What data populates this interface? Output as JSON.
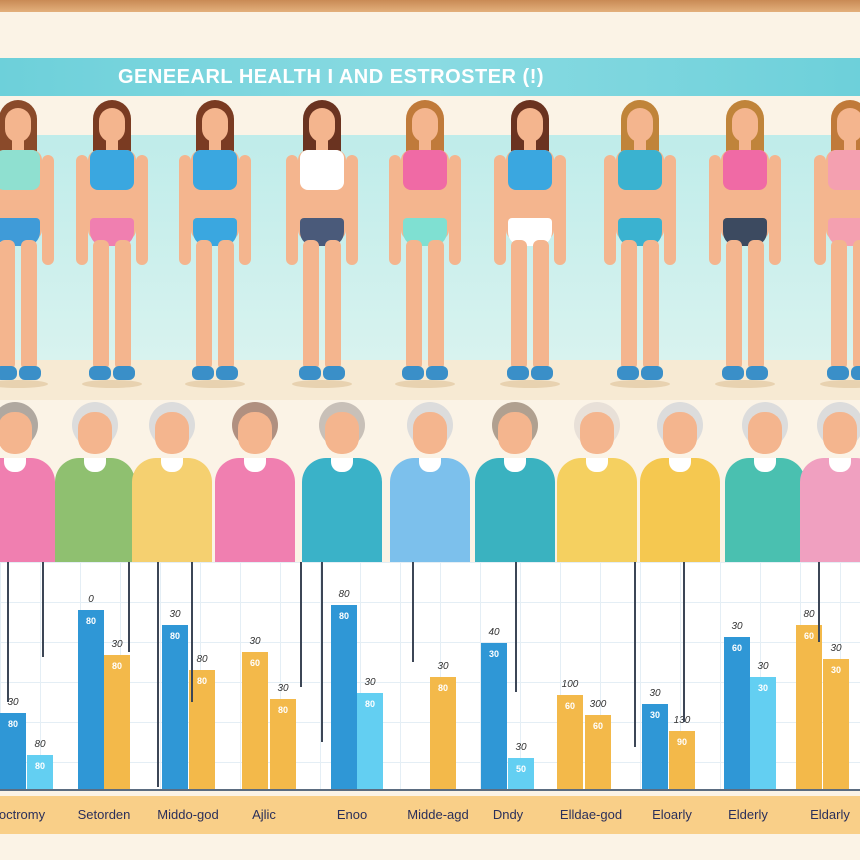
{
  "title": "GENEEARL HEALTH I AND ESTROSTER (!)",
  "colors": {
    "blue": "#2f97d6",
    "light_blue": "#63cff2",
    "orange": "#f3b94a",
    "title_band": "#6dd0da",
    "category_band": "#f9cf88"
  },
  "young_women": [
    {
      "top": "#8fe0d0",
      "bottom": "#3f9bd8",
      "hair": "#8a4a2a"
    },
    {
      "top": "#3aa7e0",
      "bottom": "#f07fb0",
      "hair": "#7a3b22"
    },
    {
      "top": "#3aa7e0",
      "bottom": "#3aa7e0",
      "hair": "#7a3b22"
    },
    {
      "top": "#ffffff",
      "bottom": "#4a5a7a",
      "hair": "#6a3320"
    },
    {
      "top": "#f06aa5",
      "bottom": "#7fe0d2",
      "hair": "#c07a3a"
    },
    {
      "top": "#3aa7e0",
      "bottom": "#ffffff",
      "hair": "#6a3320"
    },
    {
      "top": "#3ab2d0",
      "bottom": "#3ab2d0",
      "hair": "#c0843a"
    },
    {
      "top": "#f06aa5",
      "bottom": "#3c4a60",
      "hair": "#c0843a"
    },
    {
      "top": "#f4a0b0",
      "bottom": "#f4a0b0",
      "hair": "#c07a3a"
    }
  ],
  "elderly_women": [
    {
      "top": "#f07fb0",
      "hair": "#b0a8a0"
    },
    {
      "top": "#8fc070",
      "hair": "#dcdcdc"
    },
    {
      "top": "#f5d070",
      "hair": "#dcdcdc"
    },
    {
      "top": "#f07fb0",
      "hair": "#b09080"
    },
    {
      "top": "#3ab2c8",
      "hair": "#c8c0b8"
    },
    {
      "top": "#7cc0ec",
      "hair": "#dcdcdc"
    },
    {
      "top": "#3ab2c0",
      "hair": "#b0a090"
    },
    {
      "top": "#f5d060",
      "hair": "#e8e0d8"
    },
    {
      "top": "#f5c850",
      "hair": "#dcdcdc"
    },
    {
      "top": "#4ac0b0",
      "hair": "#dcdcdc"
    },
    {
      "top": "#f0a0c0",
      "hair": "#dcdcdc"
    }
  ],
  "bars": [
    {
      "color": "blue",
      "level": 0.34,
      "label": "30",
      "inner": "80"
    },
    {
      "color": "light_blue",
      "level": 0.15,
      "label": "80",
      "inner": "80"
    },
    {
      "color": "blue",
      "level": 0.8,
      "label": "0",
      "inner": "80"
    },
    {
      "color": "orange",
      "level": 0.6,
      "label": "30",
      "inner": "80"
    },
    {
      "color": "blue",
      "level": 0.73,
      "label": "30",
      "inner": "80"
    },
    {
      "color": "orange",
      "level": 0.53,
      "label": "80",
      "inner": "80"
    },
    {
      "color": "orange",
      "level": 0.61,
      "label": "30",
      "inner": "60"
    },
    {
      "color": "orange",
      "level": 0.4,
      "label": "30",
      "inner": "80"
    },
    {
      "color": "blue",
      "level": 0.82,
      "label": "80",
      "inner": "80"
    },
    {
      "color": "light_blue",
      "level": 0.43,
      "label": "30",
      "inner": "80"
    },
    {
      "color": "orange",
      "level": 0.5,
      "label": "30",
      "inner": "80"
    },
    {
      "color": "blue",
      "level": 0.65,
      "label": "40",
      "inner": "30"
    },
    {
      "color": "light_blue",
      "level": 0.14,
      "label": "30",
      "inner": "50"
    },
    {
      "color": "orange",
      "level": 0.42,
      "label": "100",
      "inner": "60"
    },
    {
      "color": "orange",
      "level": 0.33,
      "label": "300",
      "inner": "60"
    },
    {
      "color": "blue",
      "level": 0.38,
      "label": "30",
      "inner": "30"
    },
    {
      "color": "orange",
      "level": 0.26,
      "label": "130",
      "inner": "90"
    },
    {
      "color": "blue",
      "level": 0.68,
      "label": "30",
      "inner": "60"
    },
    {
      "color": "light_blue",
      "level": 0.5,
      "label": "30",
      "inner": "30"
    },
    {
      "color": "orange",
      "level": 0.73,
      "label": "80",
      "inner": "60"
    },
    {
      "color": "orange",
      "level": 0.58,
      "label": "30",
      "inner": "30"
    }
  ],
  "categories": [
    "octromy",
    "Setorden",
    "Middo-god",
    "Ajlic",
    "Enoo",
    "Midde-agd",
    "Dndy",
    "Elldae-god",
    "Eloarly",
    "Elderly",
    "Eldarly"
  ]
}
